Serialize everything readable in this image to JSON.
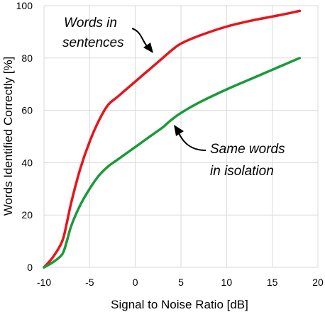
{
  "chart_data": {
    "type": "line",
    "xlabel": "Signal to Noise Ratio [dB]",
    "ylabel": "Words Identified Correctly [%]",
    "xlim": [
      -10,
      20
    ],
    "ylim": [
      0,
      100
    ],
    "xticks": [
      "-10",
      "-5",
      "0",
      "5",
      "10",
      "15",
      "20"
    ],
    "yticks": [
      "0",
      "20",
      "40",
      "60",
      "80",
      "100"
    ],
    "grid": true,
    "series": [
      {
        "color": "#e8141c",
        "x": [
          -10,
          -9,
          -8,
          -7.5,
          -7,
          -6,
          -5,
          -4,
          -3,
          -2,
          -1,
          0,
          1,
          2,
          3,
          4,
          5,
          7,
          10,
          13,
          16,
          18
        ],
        "y": [
          0,
          4,
          10,
          17,
          25,
          38,
          48,
          56,
          62,
          65,
          68,
          71,
          74,
          77,
          80,
          83,
          85.5,
          88.5,
          92,
          94.5,
          96.5,
          98
        ]
      },
      {
        "color": "#1a9a3a",
        "x": [
          -10,
          -9,
          -8,
          -7.5,
          -7,
          -6,
          -5,
          -4,
          -3,
          -2,
          -1,
          0,
          1,
          2,
          3,
          4,
          5,
          7,
          10,
          13,
          16,
          18
        ],
        "y": [
          0,
          2,
          5,
          10,
          16,
          24,
          30,
          35,
          38.5,
          41,
          43.5,
          46,
          48.5,
          51,
          53.5,
          56.5,
          59,
          63,
          68,
          72.5,
          77,
          80
        ]
      }
    ],
    "annotations": [
      {
        "lines": [
          "Words in",
          "sentences"
        ],
        "target": "series.0"
      },
      {
        "lines": [
          "Same words",
          "in isolation"
        ],
        "target": "series.1"
      }
    ]
  }
}
